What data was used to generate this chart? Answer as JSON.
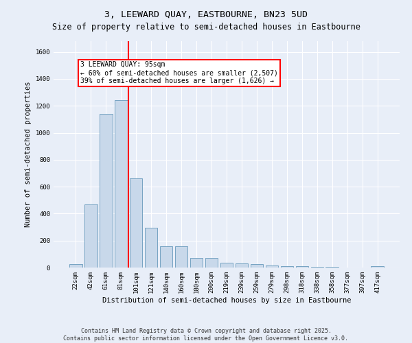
{
  "title": "3, LEEWARD QUAY, EASTBOURNE, BN23 5UD",
  "subtitle": "Size of property relative to semi-detached houses in Eastbourne",
  "xlabel": "Distribution of semi-detached houses by size in Eastbourne",
  "ylabel": "Number of semi-detached properties",
  "bar_labels": [
    "22sqm",
    "42sqm",
    "61sqm",
    "81sqm",
    "101sqm",
    "121sqm",
    "140sqm",
    "160sqm",
    "180sqm",
    "200sqm",
    "219sqm",
    "239sqm",
    "259sqm",
    "279sqm",
    "298sqm",
    "318sqm",
    "338sqm",
    "358sqm",
    "377sqm",
    "397sqm",
    "417sqm"
  ],
  "bar_values": [
    25,
    470,
    1140,
    1240,
    660,
    295,
    160,
    160,
    70,
    70,
    38,
    30,
    25,
    15,
    10,
    8,
    5,
    3,
    2,
    2,
    8
  ],
  "bar_color": "#c8d8ea",
  "bar_edge_color": "#6699bb",
  "vline_index": 3.5,
  "vline_color": "red",
  "annotation_title": "3 LEEWARD QUAY: 95sqm",
  "annotation_line1": "← 60% of semi-detached houses are smaller (2,507)",
  "annotation_line2": "39% of semi-detached houses are larger (1,626) →",
  "annotation_box_color": "white",
  "annotation_box_edge": "red",
  "ylim": [
    0,
    1680
  ],
  "yticks": [
    0,
    200,
    400,
    600,
    800,
    1000,
    1200,
    1400,
    1600
  ],
  "footer_line1": "Contains HM Land Registry data © Crown copyright and database right 2025.",
  "footer_line2": "Contains public sector information licensed under the Open Government Licence v3.0.",
  "bg_color": "#e8eef8",
  "plot_bg_color": "#e8eef8",
  "grid_color": "white",
  "title_fontsize": 9.5,
  "subtitle_fontsize": 8.5,
  "axis_label_fontsize": 7.5,
  "tick_fontsize": 6.5,
  "annotation_fontsize": 7,
  "footer_fontsize": 6
}
